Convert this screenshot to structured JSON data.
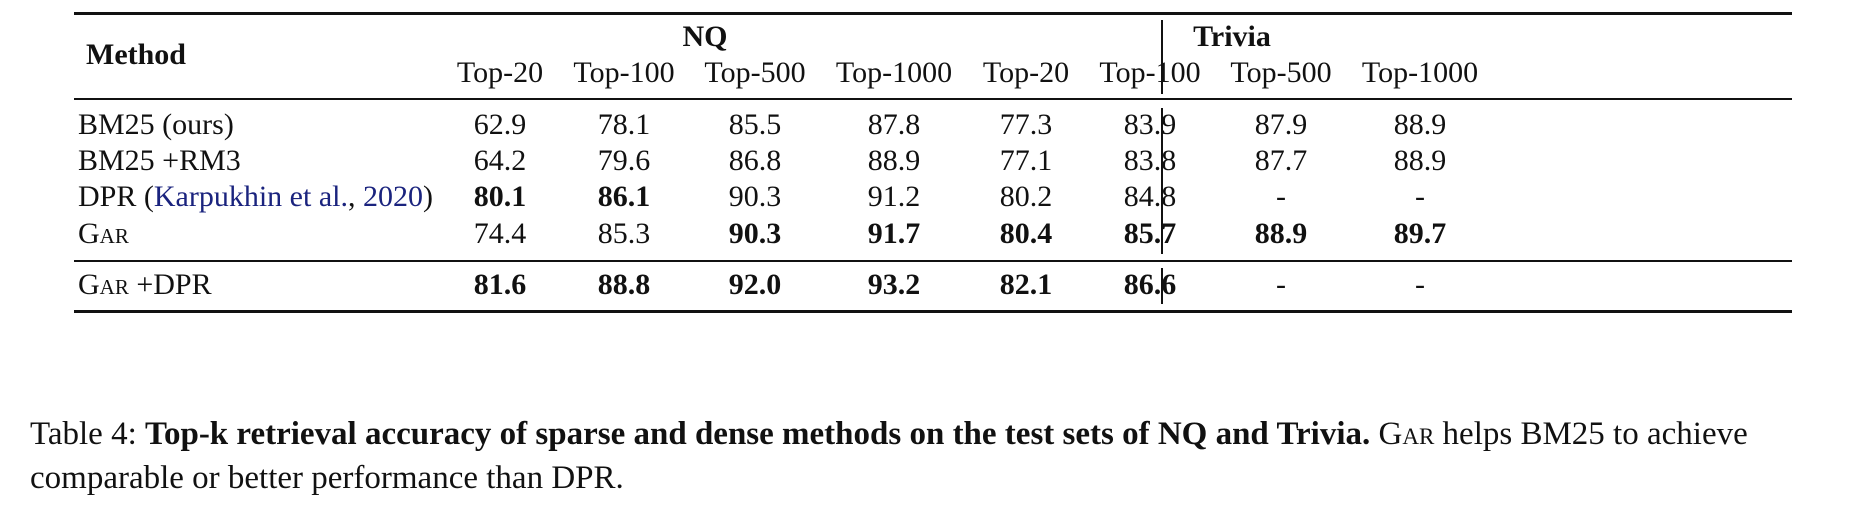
{
  "table": {
    "method_header": "Method",
    "groups": [
      "NQ",
      "Trivia"
    ],
    "columns": [
      "Top-20",
      "Top-100",
      "Top-500",
      "Top-1000",
      "Top-20",
      "Top-100",
      "Top-500",
      "Top-1000"
    ],
    "rows": [
      {
        "method": {
          "prefix": "BM25 (ours)",
          "cite_author": "",
          "cite_year": "",
          "suffix": ""
        },
        "values": [
          "62.9",
          "78.1",
          "85.5",
          "87.8",
          "77.3",
          "83.9",
          "87.9",
          "88.9"
        ],
        "bold": [
          false,
          false,
          false,
          false,
          false,
          false,
          false,
          false
        ]
      },
      {
        "method": {
          "prefix": "BM25 +RM3",
          "cite_author": "",
          "cite_year": "",
          "suffix": ""
        },
        "values": [
          "64.2",
          "79.6",
          "86.8",
          "88.9",
          "77.1",
          "83.8",
          "87.7",
          "88.9"
        ],
        "bold": [
          false,
          false,
          false,
          false,
          false,
          false,
          false,
          false
        ]
      },
      {
        "method": {
          "prefix": "DPR (",
          "cite_author": "Karpukhin et al.",
          "cite_year": "2020",
          "suffix": ")"
        },
        "values": [
          "80.1",
          "86.1",
          "90.3",
          "91.2",
          "80.2",
          "84.8",
          "-",
          "-"
        ],
        "bold": [
          true,
          true,
          false,
          false,
          false,
          false,
          false,
          false
        ]
      },
      {
        "method": {
          "prefix": "Gar",
          "cite_author": "",
          "cite_year": "",
          "suffix": "",
          "smallcaps": true
        },
        "values": [
          "74.4",
          "85.3",
          "90.3",
          "91.7",
          "80.4",
          "85.7",
          "88.9",
          "89.7"
        ],
        "bold": [
          false,
          false,
          true,
          true,
          true,
          true,
          true,
          true
        ]
      },
      {
        "method": {
          "prefix": "Gar +DPR",
          "cite_author": "",
          "cite_year": "",
          "suffix": "",
          "smallcaps": true
        },
        "values": [
          "81.6",
          "88.8",
          "92.0",
          "93.2",
          "82.1",
          "86.6",
          "-",
          "-"
        ],
        "bold": [
          true,
          true,
          true,
          true,
          true,
          true,
          false,
          false
        ]
      }
    ]
  },
  "caption": {
    "label": "Table 4:",
    "bold_text": "Top-k retrieval accuracy of sparse and dense methods on the test sets of NQ and Trivia.",
    "text_smallcaps": "Gar",
    "text_rest": "helps BM25 to achieve comparable or better performance than DPR."
  }
}
